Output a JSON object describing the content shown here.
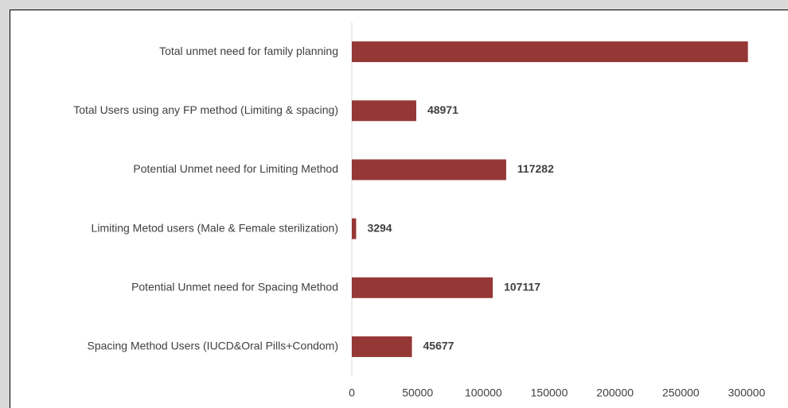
{
  "chart_data": {
    "type": "bar",
    "orientation": "horizontal",
    "categories": [
      "Total unmet need for family planning",
      "Total Users using any FP method (Limiting & spacing)",
      "Potential Unmet need for Limiting Method",
      "Limiting Metod users (Male & Female sterilization)",
      "Potential Unmet need for Spacing  Method",
      "Spacing Method Users  (IUCD&Oral Pills+Condom)"
    ],
    "values": [
      301000,
      48971,
      117282,
      3294,
      107117,
      45677
    ],
    "color": "#953735",
    "xlim": [
      0,
      300000
    ],
    "xticks": [
      0,
      50000,
      100000,
      150000,
      200000,
      250000,
      300000
    ]
  }
}
